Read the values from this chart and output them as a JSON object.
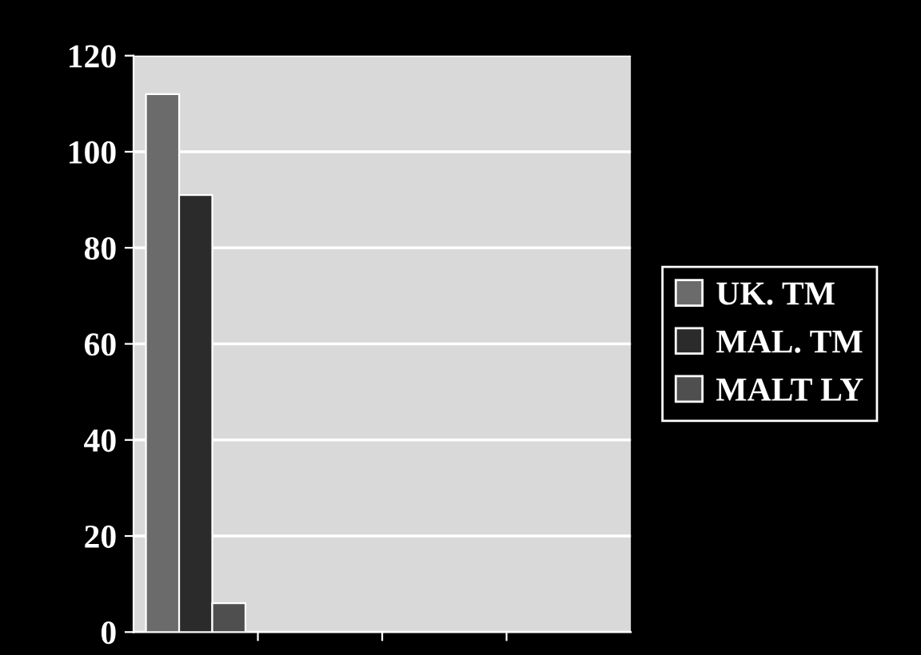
{
  "chart_data": {
    "type": "bar",
    "categories": [
      null,
      null,
      null,
      null
    ],
    "series": [
      {
        "name": "UK. TM",
        "color": "#6b6b6b",
        "values": [
          112,
          null,
          null,
          null
        ]
      },
      {
        "name": "MAL. TM",
        "color": "#2b2b2b",
        "values": [
          91,
          null,
          null,
          null
        ]
      },
      {
        "name": "MALT LY",
        "color": "#4f4f4f",
        "values": [
          6,
          null,
          null,
          null
        ]
      }
    ],
    "ylim": [
      0,
      120
    ],
    "yticks": [
      0,
      20,
      40,
      60,
      80,
      100,
      120
    ],
    "grid": "y",
    "legend": "right"
  }
}
